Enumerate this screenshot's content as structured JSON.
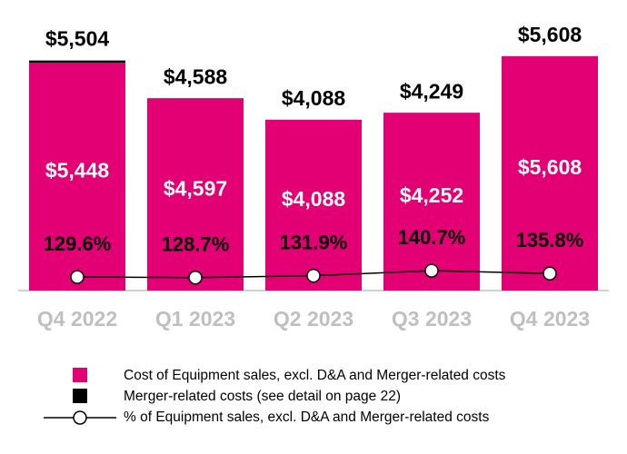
{
  "chart_data": {
    "type": "bar",
    "categories": [
      "Q4 2022",
      "Q1 2023",
      "Q2 2023",
      "Q3 2023",
      "Q4 2023"
    ],
    "series": [
      {
        "name": "Cost of Equipment sales, excl. D&A and Merger-related costs",
        "color": "#e20074",
        "values": [
          5448,
          4597,
          4088,
          4252,
          5608
        ],
        "value_labels": [
          "$5,448",
          "$4,597",
          "$4,088",
          "$4,252",
          "$5,608"
        ]
      },
      {
        "name": "Merger-related costs (see detail on page 22)",
        "color": "#000000",
        "values": [
          56,
          -9,
          0,
          -3,
          0
        ]
      },
      {
        "name": "% of Equipment sales, excl. D&A and Merger-related costs",
        "type": "line",
        "axis": "y2",
        "color": "#000000",
        "values": [
          129.6,
          128.7,
          131.9,
          140.7,
          135.8
        ],
        "value_labels": [
          "129.6%",
          "128.7%",
          "131.9%",
          "140.7%",
          "135.8%"
        ]
      }
    ],
    "totals": {
      "values": [
        5504,
        4588,
        4088,
        4249,
        5608
      ],
      "value_labels": [
        "$5,504",
        "$4,588",
        "$4,088",
        "$4,249",
        "$5,608"
      ]
    },
    "ylim": [
      0,
      6300
    ],
    "y2lim": [
      106,
      566
    ]
  }
}
